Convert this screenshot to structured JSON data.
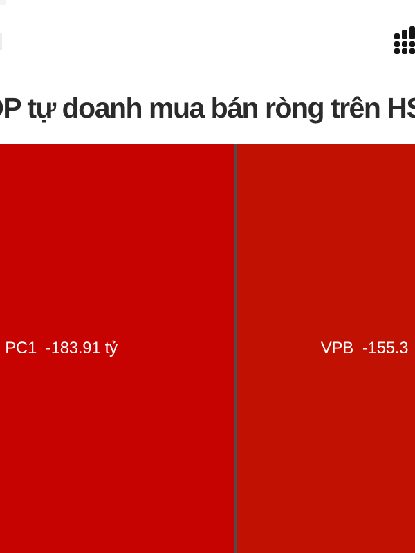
{
  "header": {
    "title_visible": "OP tự doanh mua bán ròng trên HS",
    "title_color": "#2b2b2b",
    "stats_icon": "bar-chart-dots-icon",
    "stats_icon_color": "#151515"
  },
  "chart_data": {
    "type": "treemap",
    "title": "OP tự doanh mua bán ròng trên HS",
    "unit": "tỷ",
    "legend_position": "none",
    "divider_color": "#54484a",
    "cells": [
      {
        "ticker": "PC1",
        "value": -183.91,
        "value_label": "-183.91 tỷ",
        "color": "#c70301",
        "text_color": "#ffffff",
        "clipped_edge": "left"
      },
      {
        "ticker": "VPB",
        "value": -155.3,
        "value_label": "-155.3",
        "color": "#c01102",
        "text_color": "#ffffff",
        "clipped_edge": "right"
      }
    ]
  }
}
